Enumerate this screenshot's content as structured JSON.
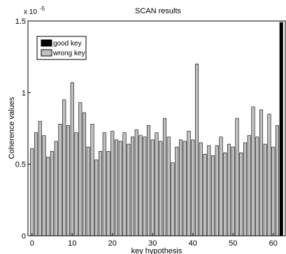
{
  "chart_data": {
    "type": "bar",
    "title": "SCAN results",
    "xlabel": "key hypothesis",
    "ylabel": "Coherence values",
    "y_exponent_label": "x 10",
    "y_exponent_power": "-5",
    "xlim": [
      -1,
      63
    ],
    "ylim": [
      0,
      1.5
    ],
    "x_ticks": [
      0,
      10,
      20,
      30,
      40,
      50,
      60
    ],
    "x_tick_labels": [
      "0",
      "10",
      "20",
      "30",
      "40",
      "50",
      "60"
    ],
    "y_ticks": [
      0,
      0.5,
      1,
      1.5
    ],
    "y_tick_labels": [
      "0",
      "0.5",
      "1",
      "1.5"
    ],
    "legend": {
      "position": "top-left",
      "entries": [
        {
          "label": "good key",
          "color": "#000000"
        },
        {
          "label": "wrong key",
          "color": "#c0c0c0"
        }
      ]
    },
    "colors": {
      "good": "#000000",
      "wrong": "#c0c0c0",
      "edge": "#000000"
    },
    "good_key_index": 62,
    "series": [
      {
        "name": "wrong key",
        "values": [
          0.61,
          0.72,
          0.8,
          0.7,
          0.55,
          0.59,
          0.66,
          0.78,
          0.95,
          0.77,
          1.07,
          0.72,
          0.93,
          0.86,
          0.62,
          0.78,
          0.53,
          0.59,
          0.72,
          0.59,
          0.73,
          0.67,
          0.66,
          0.72,
          0.64,
          0.69,
          0.74,
          0.7,
          0.69,
          0.77,
          0.67,
          0.72,
          0.66,
          0.82,
          0.69,
          0.51,
          0.62,
          0.67,
          0.66,
          0.73,
          0.67,
          1.2,
          0.65,
          0.57,
          0.63,
          0.56,
          0.63,
          0.69,
          0.58,
          0.64,
          0.62,
          0.82,
          0.58,
          0.65,
          0.7,
          0.9,
          0.69,
          0.88,
          0.64,
          0.85,
          0.62,
          0.77,
          null
        ]
      },
      {
        "name": "good key",
        "values": [
          null,
          null,
          null,
          null,
          null,
          null,
          null,
          null,
          null,
          null,
          null,
          null,
          null,
          null,
          null,
          null,
          null,
          null,
          null,
          null,
          null,
          null,
          null,
          null,
          null,
          null,
          null,
          null,
          null,
          null,
          null,
          null,
          null,
          null,
          null,
          null,
          null,
          null,
          null,
          null,
          null,
          null,
          null,
          null,
          null,
          null,
          null,
          null,
          null,
          null,
          null,
          null,
          null,
          null,
          null,
          null,
          null,
          null,
          null,
          null,
          null,
          null,
          1.49
        ]
      }
    ]
  }
}
